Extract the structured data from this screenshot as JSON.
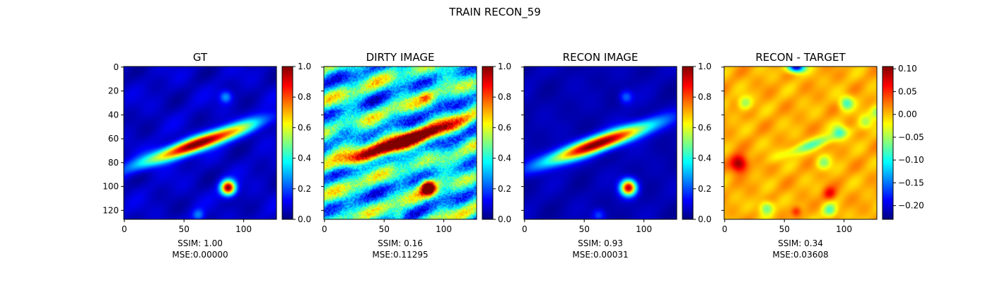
{
  "suptitle": "TRAIN RECON_59",
  "colormap": "jet",
  "chart_data": [
    {
      "type": "heatmap",
      "title": "GT",
      "xlim": [
        0,
        127
      ],
      "ylim": [
        127,
        0
      ],
      "x_ticks": [
        0,
        50,
        100
      ],
      "y_ticks": [
        0,
        20,
        40,
        60,
        80,
        100,
        120
      ],
      "colorbar": {
        "range": [
          0.0,
          1.0
        ],
        "ticks": [
          "0.0",
          "0.2",
          "0.4",
          "0.6",
          "0.8",
          "1.0"
        ]
      },
      "footer": [
        "SSIM: 1.00",
        "MSE:0.00000"
      ]
    },
    {
      "type": "heatmap",
      "title": "DIRTY IMAGE",
      "xlim": [
        0,
        127
      ],
      "ylim": [
        127,
        0
      ],
      "x_ticks": [
        0,
        50,
        100
      ],
      "y_ticks": [
        0,
        20,
        40,
        60,
        80,
        100,
        120
      ],
      "colorbar": {
        "range": [
          0.0,
          1.0
        ],
        "ticks": [
          "0.0",
          "0.2",
          "0.4",
          "0.6",
          "0.8",
          "1.0"
        ]
      },
      "footer": [
        "SSIM: 0.16",
        "MSE:0.11295"
      ]
    },
    {
      "type": "heatmap",
      "title": "RECON IMAGE",
      "xlim": [
        0,
        127
      ],
      "ylim": [
        127,
        0
      ],
      "x_ticks": [
        0,
        50,
        100
      ],
      "y_ticks": [
        0,
        20,
        40,
        60,
        80,
        100,
        120
      ],
      "colorbar": {
        "range": [
          0.0,
          1.0
        ],
        "ticks": [
          "0.0",
          "0.2",
          "0.4",
          "0.6",
          "0.8",
          "1.0"
        ]
      },
      "footer": [
        "SSIM: 0.93",
        "MSE:0.00031"
      ]
    },
    {
      "type": "heatmap",
      "title": "RECON - TARGET",
      "xlim": [
        0,
        127
      ],
      "ylim": [
        127,
        0
      ],
      "x_ticks": [
        0,
        50,
        100
      ],
      "y_ticks": [
        0,
        20,
        40,
        60,
        80,
        100,
        120
      ],
      "colorbar": {
        "range": [
          -0.23,
          0.105
        ],
        "ticks": [
          "−0.20",
          "−0.15",
          "−0.10",
          "−0.05",
          "0.00",
          "0.05",
          "0.10"
        ]
      },
      "footer": [
        "SSIM: 0.34",
        "MSE:0.03608"
      ]
    }
  ]
}
